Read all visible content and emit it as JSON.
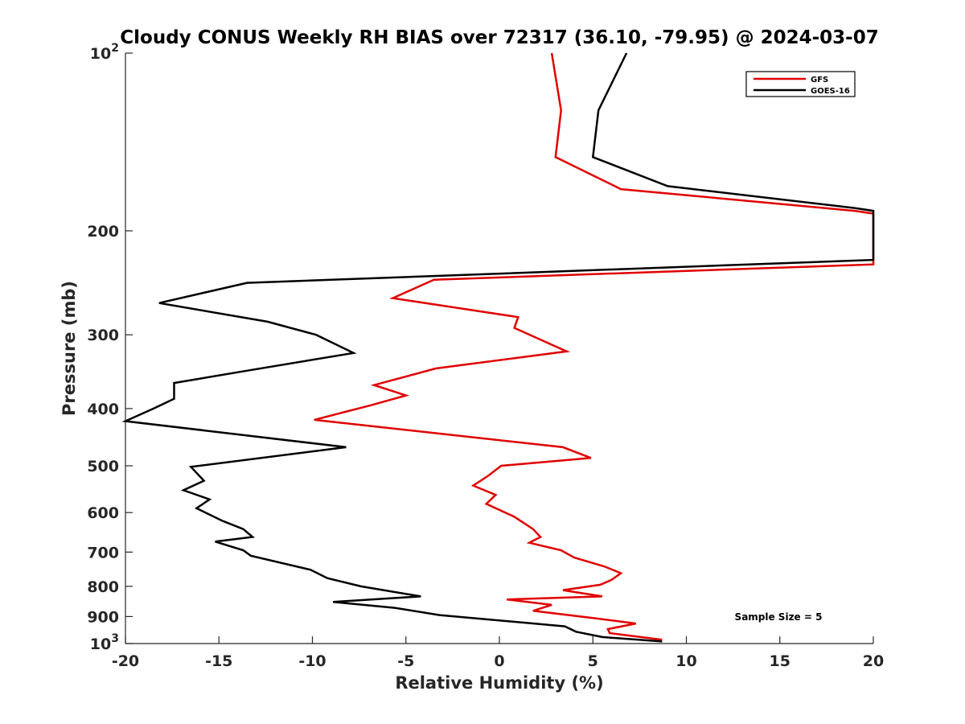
{
  "chart_data": {
    "type": "line",
    "title": "Cloudy CONUS Weekly RH BIAS over 72317 (36.10, -79.95) @ 2024-03-07",
    "xlabel": "Relative Humidity (%)",
    "ylabel": "Pressure (mb)",
    "xlim": [
      -20,
      20
    ],
    "ylim": [
      100,
      1000
    ],
    "y_scale": "log",
    "y_reversed": true,
    "x_ticks": [
      "-20",
      "-15",
      "-10",
      "-5",
      "0",
      "5",
      "10",
      "15",
      "20"
    ],
    "y_ticks": [
      {
        "value": 100,
        "base": "10",
        "exp": "2"
      },
      {
        "value": 200,
        "label": "200"
      },
      {
        "value": 300,
        "label": "300"
      },
      {
        "value": 400,
        "label": "400"
      },
      {
        "value": 500,
        "label": "500"
      },
      {
        "value": 600,
        "label": "600"
      },
      {
        "value": 700,
        "label": "700"
      },
      {
        "value": 800,
        "label": "800"
      },
      {
        "value": 900,
        "label": "900"
      },
      {
        "value": 1000,
        "base": "10",
        "exp": "3"
      }
    ],
    "grid": false,
    "legend_position": "top-right",
    "annotation": "Sample Size = 5",
    "series": [
      {
        "name": "GFS",
        "color": "#e00000",
        "points": [
          [
            2.8,
            100
          ],
          [
            3.3,
            125
          ],
          [
            3.0,
            150
          ],
          [
            6.5,
            170
          ],
          [
            19.0,
            185
          ],
          [
            20.0,
            187
          ],
          [
            20.0,
            228
          ],
          [
            -3.5,
            242
          ],
          [
            -5.7,
            260
          ],
          [
            1.0,
            280
          ],
          [
            0.8,
            292
          ],
          [
            3.6,
            320
          ],
          [
            -3.4,
            342
          ],
          [
            -6.7,
            365
          ],
          [
            -5.0,
            380
          ],
          [
            -6.9,
            395
          ],
          [
            -9.9,
            418
          ],
          [
            3.4,
            465
          ],
          [
            4.9,
            485
          ],
          [
            0.1,
            500
          ],
          [
            -0.6,
            520
          ],
          [
            -1.4,
            540
          ],
          [
            -0.2,
            560
          ],
          [
            -0.7,
            580
          ],
          [
            0.8,
            610
          ],
          [
            1.8,
            640
          ],
          [
            2.2,
            660
          ],
          [
            1.6,
            675
          ],
          [
            3.3,
            695
          ],
          [
            4.0,
            715
          ],
          [
            5.6,
            740
          ],
          [
            6.5,
            760
          ],
          [
            6.0,
            780
          ],
          [
            5.4,
            795
          ],
          [
            3.4,
            812
          ],
          [
            5.5,
            832
          ],
          [
            0.4,
            842
          ],
          [
            2.8,
            860
          ],
          [
            1.8,
            880
          ],
          [
            5.0,
            905
          ],
          [
            7.3,
            925
          ],
          [
            5.8,
            945
          ],
          [
            5.9,
            960
          ],
          [
            8.7,
            985
          ]
        ]
      },
      {
        "name": "GOES-16",
        "color": "#000000",
        "points": [
          [
            6.8,
            100
          ],
          [
            5.3,
            125
          ],
          [
            5.0,
            150
          ],
          [
            9.0,
            168
          ],
          [
            19.0,
            183
          ],
          [
            20.0,
            185
          ],
          [
            20.0,
            224
          ],
          [
            -13.5,
            245
          ],
          [
            -18.2,
            265
          ],
          [
            -12.4,
            285
          ],
          [
            -9.8,
            300
          ],
          [
            -7.8,
            322
          ],
          [
            -13.5,
            345
          ],
          [
            -17.4,
            362
          ],
          [
            -17.4,
            385
          ],
          [
            -18.5,
            400
          ],
          [
            -20.0,
            420
          ],
          [
            -8.2,
            465
          ],
          [
            -16.5,
            502
          ],
          [
            -15.8,
            530
          ],
          [
            -16.9,
            550
          ],
          [
            -15.5,
            570
          ],
          [
            -16.2,
            590
          ],
          [
            -14.8,
            620
          ],
          [
            -13.7,
            640
          ],
          [
            -13.2,
            660
          ],
          [
            -15.2,
            672
          ],
          [
            -13.7,
            695
          ],
          [
            -13.3,
            710
          ],
          [
            -10.1,
            750
          ],
          [
            -9.2,
            775
          ],
          [
            -7.4,
            800
          ],
          [
            -4.2,
            832
          ],
          [
            -8.9,
            850
          ],
          [
            -5.6,
            870
          ],
          [
            -3.2,
            895
          ],
          [
            3.5,
            935
          ],
          [
            4.1,
            955
          ],
          [
            5.5,
            975
          ],
          [
            8.7,
            992
          ]
        ]
      }
    ]
  }
}
